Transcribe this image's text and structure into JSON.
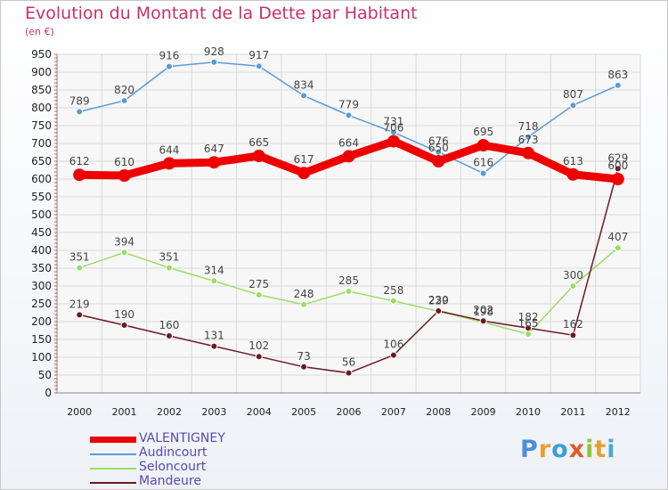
{
  "header": {
    "title": "Evolution du Montant de la Dette par Habitant",
    "unit": "(en €)"
  },
  "logo": {
    "text": "Proxiti",
    "letters": [
      {
        "ch": "P",
        "color": "#4a8fd8"
      },
      {
        "ch": "r",
        "color": "#e8a030"
      },
      {
        "ch": "o",
        "color": "#3a9fd8"
      },
      {
        "ch": "x",
        "color": "#e05a2a"
      },
      {
        "ch": "i",
        "color": "#8fc43a"
      },
      {
        "ch": "t",
        "color": "#e8a030"
      },
      {
        "ch": "i",
        "color": "#4aa8d8"
      }
    ]
  },
  "chart_data": {
    "type": "line",
    "title": "Evolution du Montant de la Dette par Habitant",
    "ylabel": "(en €)",
    "x": [
      "2000",
      "2001",
      "2002",
      "2003",
      "2004",
      "2005",
      "2006",
      "2007",
      "2008",
      "2009",
      "2010",
      "2011",
      "2012"
    ],
    "ylim": [
      0,
      950
    ],
    "yticks": [
      0,
      50,
      100,
      150,
      200,
      250,
      300,
      350,
      400,
      450,
      500,
      550,
      600,
      650,
      700,
      750,
      800,
      850,
      900,
      950
    ],
    "grid": true,
    "legend_position": "bottom-left",
    "series": [
      {
        "name": "VALENTIGNEY",
        "color": "#ee0000",
        "emphasis": true,
        "values": [
          612,
          610,
          644,
          647,
          665,
          617,
          664,
          706,
          650,
          695,
          673,
          613,
          600
        ],
        "labels": [
          "612",
          "610",
          "644",
          "647",
          "665",
          "617",
          "664",
          "706",
          "650",
          "695",
          "673",
          "613",
          "600"
        ]
      },
      {
        "name": "Audincourt",
        "color": "#5b9bd5",
        "values": [
          789,
          820,
          916,
          928,
          917,
          834,
          779,
          731,
          676,
          616,
          718,
          807,
          863
        ],
        "labels": [
          "789",
          "820",
          "916",
          "928",
          "917",
          "834",
          "779",
          "731",
          "676",
          "616",
          "718",
          "807",
          "863"
        ]
      },
      {
        "name": "Seloncourt",
        "color": "#99dd66",
        "values": [
          351,
          394,
          351,
          314,
          275,
          248,
          285,
          258,
          229,
          198,
          165,
          300,
          407
        ],
        "labels": [
          "351",
          "394",
          "351",
          "314",
          "275",
          "248",
          "285",
          "258",
          "229",
          "198",
          "165",
          "300",
          "407"
        ]
      },
      {
        "name": "Mandeure",
        "color": "#6b1a24",
        "values": [
          219,
          190,
          160,
          131,
          102,
          73,
          56,
          106,
          230,
          202,
          182,
          162,
          629
        ],
        "labels": [
          "219",
          "190",
          "160",
          "131",
          "102",
          "73",
          "56",
          "106",
          "230",
          "202",
          "182",
          "162",
          "629"
        ]
      }
    ]
  }
}
